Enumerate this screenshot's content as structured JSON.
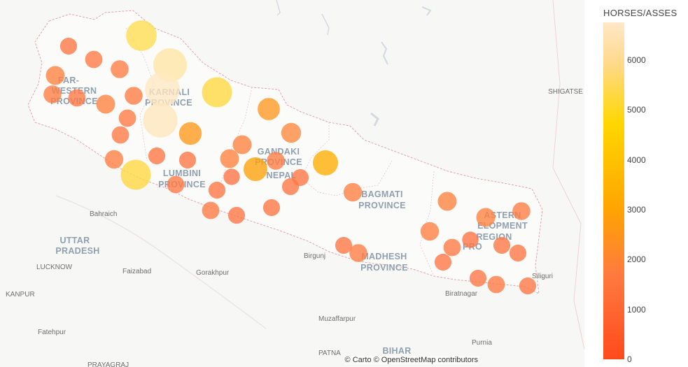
{
  "colorbar": {
    "title": "HORSES/ASSES",
    "ticks": [
      "6000",
      "5000",
      "4000",
      "3000",
      "2000",
      "1000",
      "0"
    ],
    "max": 6800
  },
  "attribution": "© Carto © OpenStreetMap contributors",
  "regions": [
    {
      "id": "far-western-1",
      "text": "FAR-"
    },
    {
      "id": "far-western-2",
      "text": "WESTERN"
    },
    {
      "id": "far-western-3",
      "text": "PROVINCE"
    },
    {
      "id": "karnali-1",
      "text": "KARNALI"
    },
    {
      "id": "karnali-2",
      "text": "PROVINCE"
    },
    {
      "id": "gandaki-1",
      "text": "GANDAKI"
    },
    {
      "id": "gandaki-2",
      "text": "PROVINCE"
    },
    {
      "id": "nepal",
      "text": "NEPAL"
    },
    {
      "id": "lumbini-1",
      "text": "LUMBINI"
    },
    {
      "id": "lumbini-2",
      "text": "PROVINCE"
    },
    {
      "id": "bagmati-1",
      "text": "BAGMATI"
    },
    {
      "id": "bagmati-2",
      "text": "PROVINCE"
    },
    {
      "id": "madhesh-1",
      "text": "MADHESH"
    },
    {
      "id": "madhesh-2",
      "text": "PROVINCE"
    },
    {
      "id": "eastern-1",
      "text": "ASTERN"
    },
    {
      "id": "eastern-2",
      "text": "ELOPMENT"
    },
    {
      "id": "eastern-3",
      "text": "REGION"
    },
    {
      "id": "eastern-pro",
      "text": "PRO"
    },
    {
      "id": "uttar-1",
      "text": "UTTAR"
    },
    {
      "id": "uttar-2",
      "text": "PRADESH"
    },
    {
      "id": "bihar",
      "text": "BIHAR"
    },
    {
      "id": "shigatse",
      "text": "SHIGATSE"
    }
  ],
  "cities": [
    {
      "id": "bahraich",
      "text": "Bahraich"
    },
    {
      "id": "lucknow",
      "text": "LUCKNOW"
    },
    {
      "id": "faizabad",
      "text": "Faizabad"
    },
    {
      "id": "gorakhpur",
      "text": "Gorakhpur"
    },
    {
      "id": "kanpur",
      "text": "KANPUR"
    },
    {
      "id": "fatehpur",
      "text": "Fatehpur"
    },
    {
      "id": "prayagraj",
      "text": "PRAYAGRAJ"
    },
    {
      "id": "birgunj",
      "text": "Birgunj"
    },
    {
      "id": "muzaffarpur",
      "text": "Muzaffarpur"
    },
    {
      "id": "patna",
      "text": "PATNA"
    },
    {
      "id": "purnia",
      "text": "Purnia"
    },
    {
      "id": "biratnagar",
      "text": "Biratnagar"
    },
    {
      "id": "siliguri",
      "text": "Siliguri"
    }
  ],
  "points": [
    {
      "v": 5100
    },
    {
      "v": 6200
    },
    {
      "v": 6700
    },
    {
      "v": 6600
    },
    {
      "v": 4900
    },
    {
      "v": 4900
    },
    {
      "v": 2500
    },
    {
      "v": 2600
    },
    {
      "v": 1300
    },
    {
      "v": 1400
    },
    {
      "v": 1500
    },
    {
      "v": 1500
    },
    {
      "v": 1700
    },
    {
      "v": 1400
    },
    {
      "v": 1500
    },
    {
      "v": 1700
    },
    {
      "v": 1400
    },
    {
      "v": 1400
    },
    {
      "v": 1600
    },
    {
      "v": 1300
    },
    {
      "v": 1700
    },
    {
      "v": 1700
    },
    {
      "v": 2900
    },
    {
      "v": 1900
    },
    {
      "v": 3300
    },
    {
      "v": 1500
    },
    {
      "v": 1300
    },
    {
      "v": 1200
    },
    {
      "v": 1400
    },
    {
      "v": 1400
    },
    {
      "v": 1300
    },
    {
      "v": 1600
    },
    {
      "v": 1700
    },
    {
      "v": 1500
    },
    {
      "v": 1700
    },
    {
      "v": 1600
    },
    {
      "v": 1400
    },
    {
      "v": 1200
    },
    {
      "v": 1300
    },
    {
      "v": 1300
    },
    {
      "v": 1500
    },
    {
      "v": 1300
    },
    {
      "v": 1300
    },
    {
      "v": 1400
    },
    {
      "v": 1300
    },
    {
      "v": 1300
    },
    {
      "v": 1300
    },
    {
      "v": 1300
    },
    {
      "v": 1300
    },
    {
      "v": 1300
    }
  ]
}
